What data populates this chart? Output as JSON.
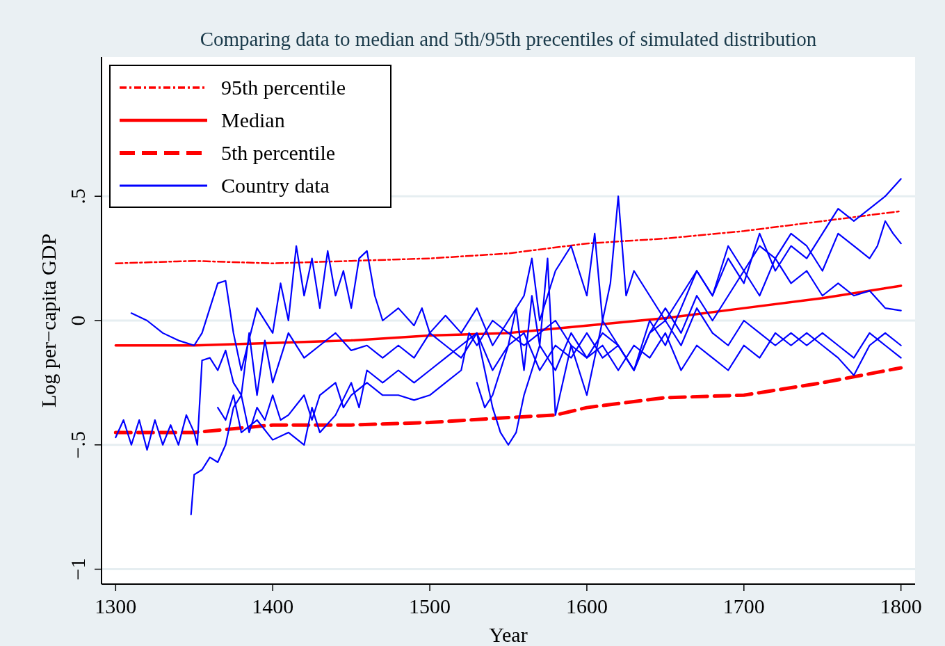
{
  "chart_data": {
    "type": "line",
    "title": "Comparing data to median and 5th/95th precentiles of simulated distribution",
    "xlabel": "Year",
    "ylabel": "Log per−capita GDP",
    "xlim": [
      1291,
      1809
    ],
    "xticks": [
      1300,
      1400,
      1500,
      1600,
      1700,
      1800
    ],
    "ylim": [
      -1.06,
      1.06
    ],
    "yticks": [
      {
        "value": -1,
        "label": "−1"
      },
      {
        "value": -0.5,
        "label": "−.5"
      },
      {
        "value": 0,
        "label": "0"
      },
      {
        "value": 0.5,
        "label": ".5"
      }
    ],
    "grid": "y",
    "legend": "top left",
    "marker": "none",
    "series": [
      {
        "name": "95th percentile",
        "color": "#ff0000",
        "line_style": "dotted",
        "x": [
          1300,
          1350,
          1400,
          1450,
          1500,
          1550,
          1600,
          1650,
          1700,
          1750,
          1800
        ],
        "values": [
          0.23,
          0.24,
          0.23,
          0.24,
          0.25,
          0.27,
          0.31,
          0.33,
          0.36,
          0.4,
          0.44
        ]
      },
      {
        "name": "Median",
        "color": "#ff0000",
        "line_style": "solid",
        "x": [
          1300,
          1350,
          1400,
          1450,
          1500,
          1550,
          1600,
          1650,
          1700,
          1750,
          1800
        ],
        "values": [
          -0.1,
          -0.1,
          -0.09,
          -0.08,
          -0.06,
          -0.05,
          -0.02,
          0.01,
          0.05,
          0.09,
          0.14
        ]
      },
      {
        "name": "5th percentile",
        "color": "#ff0000",
        "line_style": "dashed",
        "x": [
          1300,
          1350,
          1400,
          1450,
          1500,
          1550,
          1580,
          1600,
          1650,
          1700,
          1750,
          1800
        ],
        "values": [
          -0.45,
          -0.45,
          -0.42,
          -0.42,
          -0.41,
          -0.39,
          -0.38,
          -0.35,
          -0.31,
          -0.3,
          -0.25,
          -0.19
        ]
      },
      {
        "name": "Country data",
        "color": "#0000ff",
        "line_style": "solid",
        "x": [
          1310,
          1320,
          1330,
          1340,
          1350,
          1355,
          1360,
          1365,
          1370,
          1375,
          1380,
          1390,
          1400,
          1405,
          1410,
          1415,
          1420,
          1425,
          1430,
          1435,
          1440,
          1445,
          1450,
          1455,
          1460,
          1465,
          1470,
          1480,
          1490,
          1495,
          1500,
          1510,
          1520,
          1530,
          1540,
          1550,
          1560,
          1565,
          1570,
          1580,
          1590,
          1600,
          1605,
          1610,
          1615,
          1620,
          1625,
          1630,
          1640,
          1650,
          1660,
          1670,
          1680,
          1690,
          1700,
          1710,
          1720,
          1730,
          1740,
          1750,
          1760,
          1770,
          1780,
          1790,
          1800
        ],
        "values": [
          0.03,
          0,
          -0.05,
          -0.08,
          -0.1,
          -0.05,
          0.05,
          0.15,
          0.16,
          -0.05,
          -0.2,
          0.05,
          -0.05,
          0.15,
          0,
          0.3,
          0.1,
          0.25,
          0.05,
          0.28,
          0.1,
          0.2,
          0.05,
          0.25,
          0.28,
          0.1,
          0,
          0.05,
          -0.02,
          0.05,
          -0.05,
          0.02,
          -0.05,
          0.05,
          -0.1,
          0,
          0.1,
          0.25,
          0,
          0.2,
          0.3,
          0.1,
          0.35,
          0,
          0.15,
          0.5,
          0.1,
          0.2,
          0.1,
          0,
          0.1,
          0.2,
          0.1,
          0.25,
          0.15,
          0.35,
          0.2,
          0.3,
          0.25,
          0.35,
          0.45,
          0.4,
          0.45,
          0.5,
          0.57
        ]
      },
      {
        "color": "#0000ff",
        "line_style": "solid",
        "x": [
          1300,
          1305,
          1310,
          1315,
          1320,
          1325,
          1330,
          1335,
          1340,
          1345,
          1350,
          1352,
          1355,
          1360,
          1365,
          1370,
          1375,
          1380,
          1385,
          1390,
          1395,
          1400,
          1410,
          1420,
          1430,
          1440,
          1450,
          1460,
          1470,
          1480,
          1490,
          1500,
          1510,
          1520,
          1530,
          1540,
          1550,
          1560,
          1570,
          1580,
          1590,
          1600,
          1610,
          1620,
          1630,
          1640,
          1650,
          1660,
          1670,
          1680,
          1690,
          1700,
          1710,
          1720,
          1730,
          1740,
          1750,
          1760,
          1770,
          1780,
          1790,
          1800
        ],
        "values": [
          -0.47,
          -0.4,
          -0.5,
          -0.4,
          -0.52,
          -0.4,
          -0.5,
          -0.42,
          -0.5,
          -0.38,
          -0.45,
          -0.5,
          -0.16,
          -0.15,
          -0.2,
          -0.12,
          -0.25,
          -0.3,
          -0.05,
          -0.3,
          -0.08,
          -0.25,
          -0.05,
          -0.15,
          -0.1,
          -0.05,
          -0.12,
          -0.1,
          -0.15,
          -0.1,
          -0.15,
          -0.05,
          -0.1,
          -0.15,
          -0.05,
          -0.2,
          -0.1,
          -0.05,
          -0.2,
          -0.1,
          -0.15,
          -0.05,
          -0.15,
          -0.1,
          -0.2,
          -0.05,
          0.05,
          -0.05,
          0.1,
          0,
          0.1,
          0.2,
          0.1,
          0.25,
          0.15,
          0.2,
          0.1,
          0.15,
          0.1,
          0.12,
          0.05,
          0.04
        ]
      },
      {
        "color": "#0000ff",
        "line_style": "solid",
        "x": [
          1348,
          1350,
          1355,
          1360,
          1365,
          1370,
          1375,
          1380,
          1385,
          1390,
          1395,
          1400,
          1405,
          1410,
          1420,
          1425,
          1430,
          1440,
          1445,
          1450,
          1460,
          1470,
          1480,
          1490,
          1500,
          1510,
          1520,
          1525,
          1530,
          1540,
          1550,
          1560,
          1570,
          1580,
          1590,
          1600,
          1610,
          1620,
          1630,
          1640,
          1650,
          1660,
          1670,
          1680,
          1690,
          1700,
          1710,
          1720,
          1730,
          1740,
          1750,
          1760,
          1770,
          1780,
          1790,
          1800
        ],
        "values": [
          -0.78,
          -0.62,
          -0.6,
          -0.55,
          -0.57,
          -0.5,
          -0.35,
          -0.3,
          -0.45,
          -0.35,
          -0.4,
          -0.3,
          -0.4,
          -0.38,
          -0.3,
          -0.4,
          -0.3,
          -0.25,
          -0.35,
          -0.3,
          -0.25,
          -0.3,
          -0.3,
          -0.32,
          -0.3,
          -0.25,
          -0.2,
          -0.05,
          -0.1,
          0,
          -0.05,
          -0.1,
          -0.05,
          0,
          -0.1,
          -0.15,
          -0.05,
          -0.1,
          -0.2,
          -0.05,
          0,
          -0.1,
          0.05,
          -0.05,
          -0.1,
          0,
          -0.05,
          -0.1,
          -0.05,
          -0.1,
          -0.05,
          -0.1,
          -0.15,
          -0.05,
          -0.1,
          -0.15
        ]
      },
      {
        "color": "#0000ff",
        "line_style": "solid",
        "x": [
          1365,
          1370,
          1375,
          1380,
          1390,
          1400,
          1410,
          1420,
          1425,
          1430,
          1440,
          1450,
          1455,
          1460,
          1470,
          1480,
          1490,
          1500,
          1510,
          1520,
          1530,
          1535,
          1540,
          1545,
          1550,
          1555,
          1560,
          1570,
          1580,
          1590,
          1600,
          1610,
          1620,
          1630,
          1640,
          1650,
          1660,
          1670,
          1680,
          1690,
          1700,
          1710,
          1720,
          1730,
          1740,
          1750,
          1760,
          1770,
          1780,
          1790,
          1800
        ],
        "values": [
          -0.35,
          -0.4,
          -0.3,
          -0.45,
          -0.4,
          -0.48,
          -0.45,
          -0.5,
          -0.35,
          -0.45,
          -0.38,
          -0.25,
          -0.35,
          -0.2,
          -0.25,
          -0.2,
          -0.25,
          -0.2,
          -0.15,
          -0.1,
          -0.05,
          -0.2,
          -0.35,
          -0.45,
          -0.5,
          -0.45,
          -0.3,
          -0.1,
          -0.2,
          -0.05,
          -0.15,
          -0.1,
          -0.2,
          -0.1,
          -0.15,
          -0.05,
          -0.2,
          -0.1,
          -0.15,
          -0.2,
          -0.1,
          -0.15,
          -0.05,
          -0.1,
          -0.05,
          -0.1,
          -0.15,
          -0.22,
          -0.1,
          -0.05,
          -0.1
        ]
      },
      {
        "color": "#0000ff",
        "line_style": "solid",
        "x": [
          1530,
          1535,
          1540,
          1550,
          1555,
          1560,
          1565,
          1570,
          1575,
          1580,
          1590,
          1600,
          1610,
          1620,
          1630,
          1640,
          1650,
          1660,
          1670,
          1680,
          1690,
          1700,
          1710,
          1720,
          1730,
          1740,
          1750,
          1760,
          1770,
          1780,
          1785,
          1790,
          1795,
          1800
        ],
        "values": [
          -0.25,
          -0.35,
          -0.3,
          -0.1,
          0.05,
          -0.2,
          0.1,
          -0.1,
          0.25,
          -0.38,
          -0.1,
          -0.3,
          0,
          -0.1,
          -0.2,
          0,
          -0.1,
          0.05,
          0.2,
          0.1,
          0.3,
          0.2,
          0.3,
          0.25,
          0.35,
          0.3,
          0.2,
          0.35,
          0.3,
          0.25,
          0.3,
          0.4,
          0.35,
          0.31
        ]
      }
    ]
  }
}
